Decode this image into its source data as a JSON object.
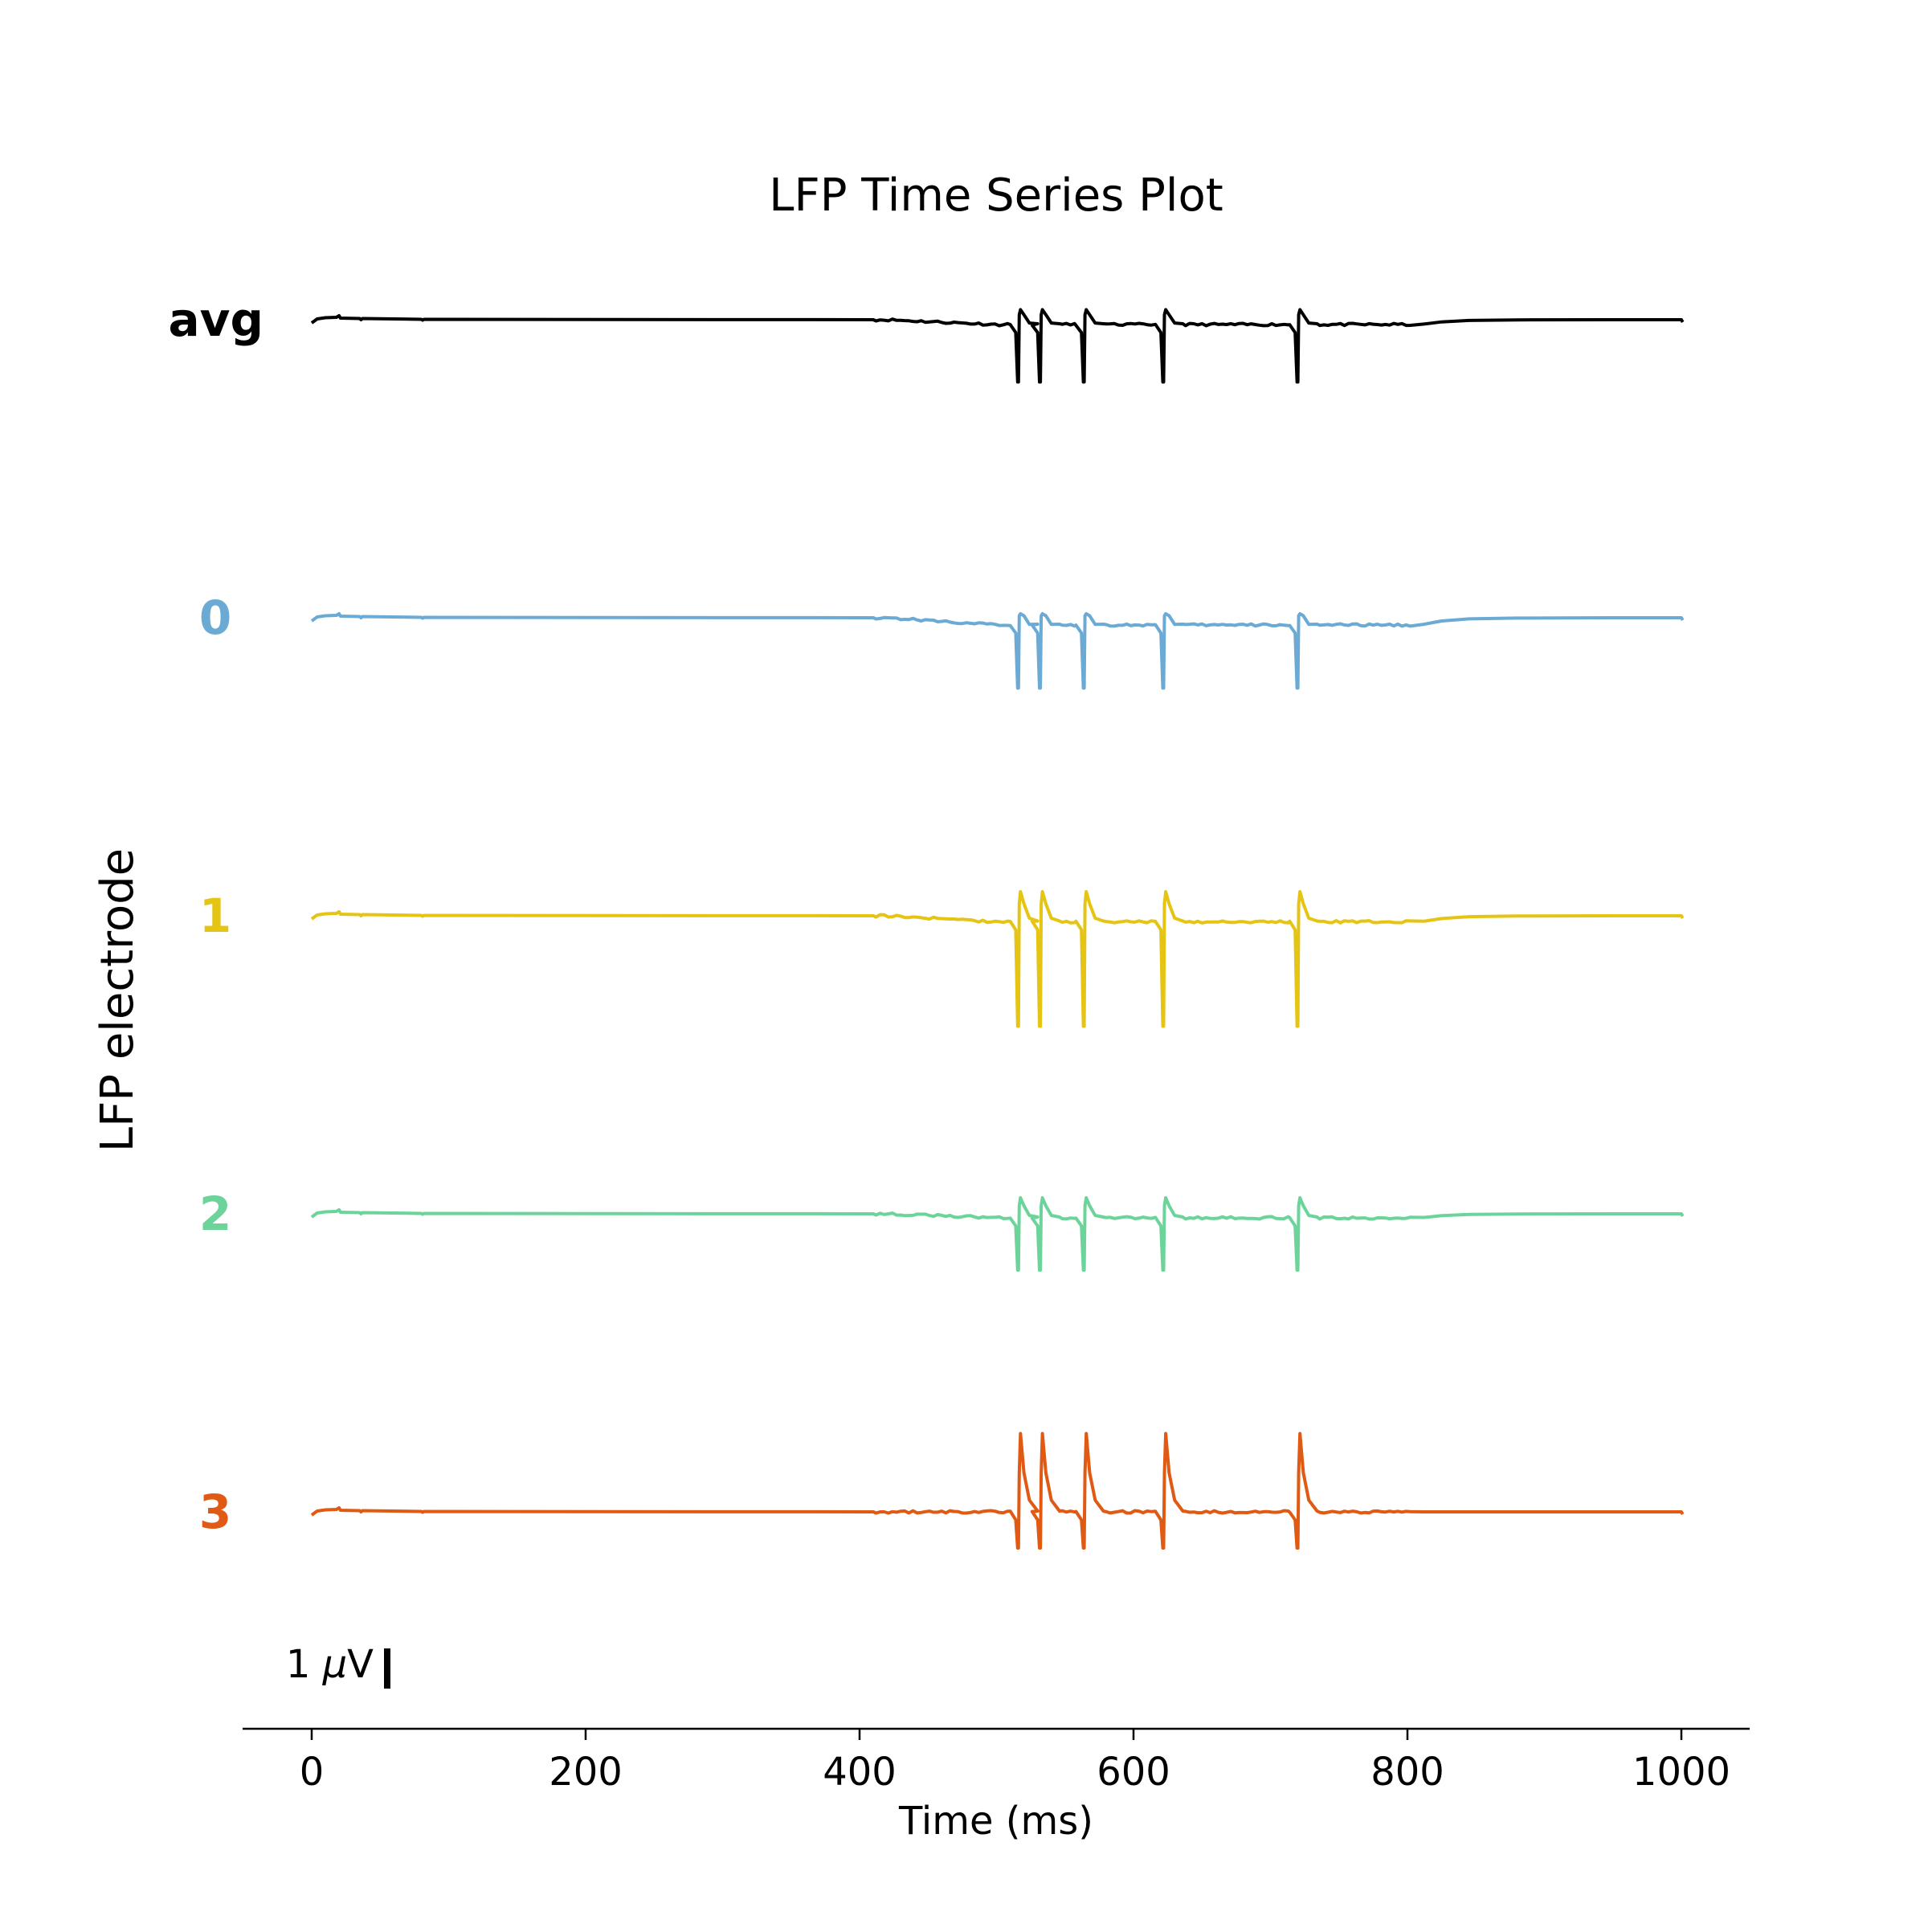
{
  "chart_data": {
    "type": "line",
    "title": "LFP Time Series Plot",
    "xlabel": "Time (ms)",
    "ylabel": "LFP electrode",
    "xlim": [
      -25,
      1050
    ],
    "xticks": [
      0,
      200,
      400,
      600,
      800,
      1000
    ],
    "grid": false,
    "legend": "none",
    "scale_bar": {
      "label_number": "1 ",
      "label_symbol": "μ",
      "label_unit": "V",
      "value_uV": 1
    },
    "spike_times_ms": [
      516,
      532,
      564,
      622,
      720
    ],
    "series": [
      {
        "name": "avg",
        "color": "#000000",
        "bold_label": true,
        "baseline_uV": 0,
        "spike_trough_uV": -1.55,
        "spike_peak_uV": 0.25,
        "activity_offset_uV": -0.12
      },
      {
        "name": "0",
        "color": "#6aaad4",
        "bold_label": true,
        "baseline_uV": 0,
        "spike_trough_uV": -1.75,
        "spike_peak_uV": 0.1,
        "activity_offset_uV": -0.18
      },
      {
        "name": "1",
        "color": "#e5c414",
        "bold_label": true,
        "baseline_uV": 0,
        "spike_trough_uV": -2.75,
        "spike_peak_uV": 0.6,
        "activity_offset_uV": -0.15
      },
      {
        "name": "2",
        "color": "#6cd49a",
        "bold_label": true,
        "baseline_uV": 0,
        "spike_trough_uV": -1.4,
        "spike_peak_uV": 0.4,
        "activity_offset_uV": -0.1
      },
      {
        "name": "3",
        "color": "#e05a13",
        "bold_label": true,
        "baseline_uV": 0,
        "spike_trough_uV": -0.9,
        "spike_peak_uV": 1.95,
        "activity_offset_uV": 0.0
      }
    ]
  }
}
